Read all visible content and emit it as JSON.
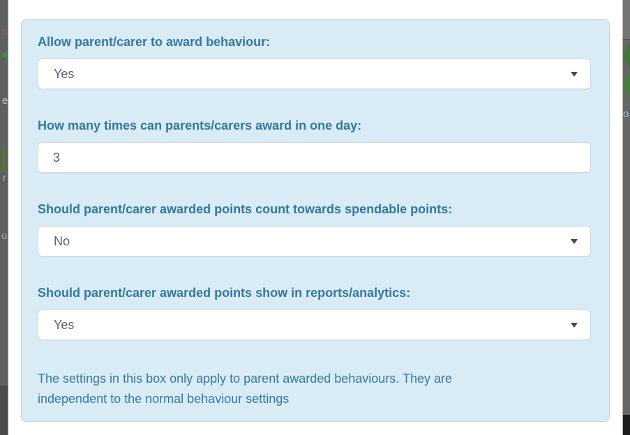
{
  "modal": {
    "fields": [
      {
        "label": "Allow parent/carer to award behaviour:",
        "value": "Yes",
        "control": "select"
      },
      {
        "label": "How many times can parents/carers award in one day:",
        "value": "3",
        "control": "text-input"
      },
      {
        "label": "Should parent/carer awarded points count towards spendable points:",
        "value": "No",
        "control": "select"
      },
      {
        "label": "Should parent/carer awarded points show in reports/analytics:",
        "value": "Yes",
        "control": "select"
      }
    ],
    "note_line1": "The settings in this box only apply to parent awarded behaviours. They are",
    "note_line2": "independent to the normal behaviour settings"
  },
  "colors": {
    "panel_bg": "#d9ecf6",
    "panel_border": "#bcd4e2",
    "label_text": "#32789f",
    "field_text": "#5a6370",
    "field_border": "#d2d6da",
    "caret": "#43484d",
    "overlay_gray": "#5f5f5f",
    "accent_green": "#3f8a3c"
  },
  "edges": {
    "left_letters": [
      "n",
      "e",
      "r",
      "o"
    ],
    "right_letters": [
      "o"
    ]
  }
}
